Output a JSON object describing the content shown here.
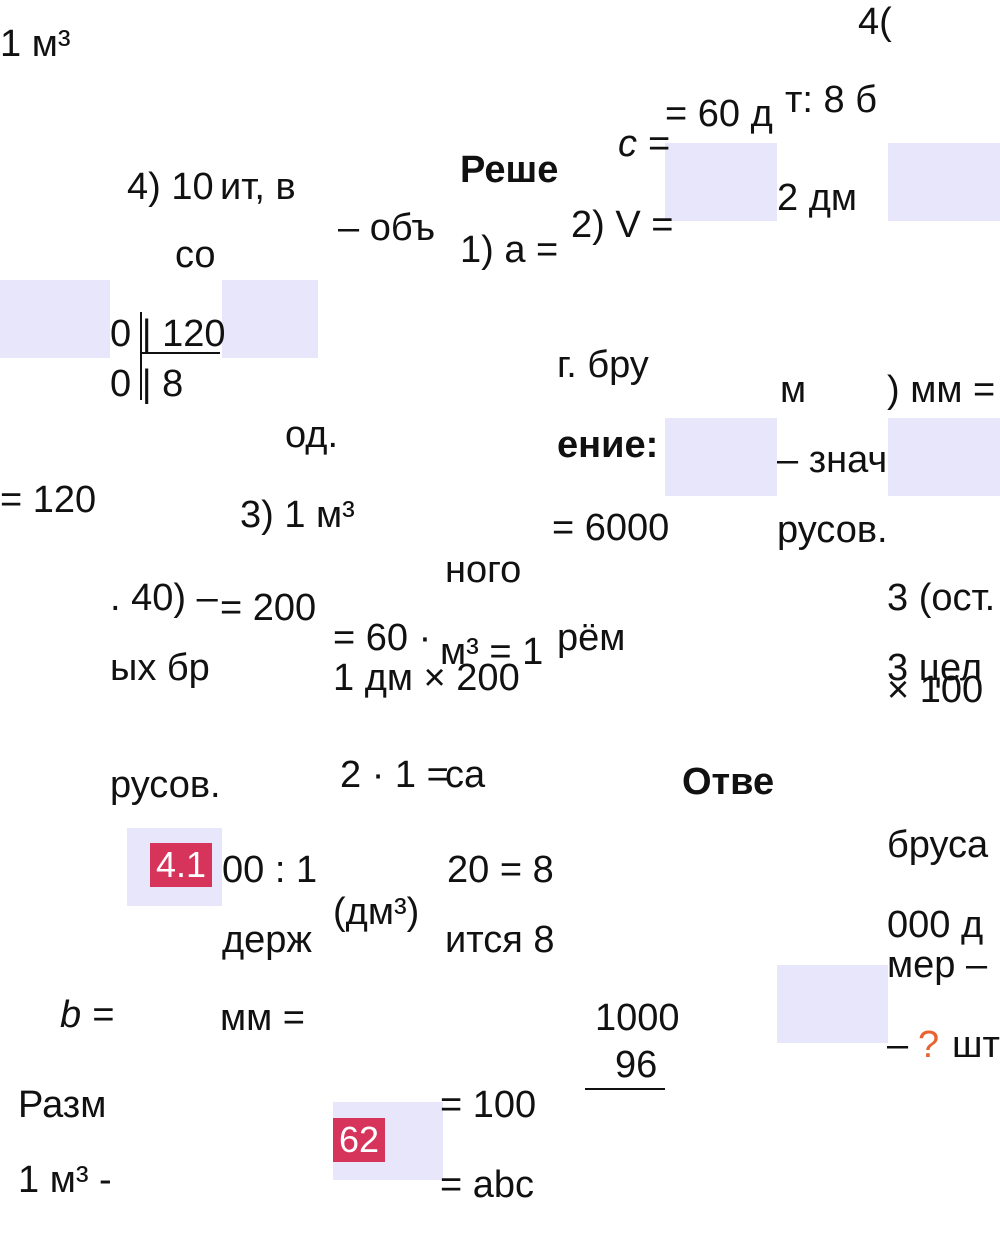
{
  "fragments": [
    "1 м³",
    "4(",
    "= 60 д",
    "т: 8 б",
    "с =",
    "Реше",
    "4) 10",
    "ит, в",
    "2 дм",
    "– объ",
    "2) V =",
    "1) a =",
    "со",
    "0 | 120",
    "0 | 8",
    "г. бру",
    "м",
    ") мм =",
    "од.",
    "ение:",
    "– знач",
    "= 120",
    "3) 1 м³",
    "= 6000",
    "русов.",
    "ного",
    ". 40) –",
    "= 200",
    "3 (ост.",
    "= 60 ·",
    "м³ = 1",
    "рём",
    "ых бр",
    "3 цел",
    "1 дм × 200",
    "× 100",
    "русов.",
    "2 · 1 =",
    "са",
    "Отве",
    "бруса",
    "4.1",
    "00 : 1",
    "20 = 8",
    "(дм³)",
    "000 д",
    "держ",
    "ится 8",
    "мер –",
    "b =",
    "мм =",
    "1000",
    "96",
    "–",
    "?",
    "шт",
    "Разм",
    "62",
    "= 100",
    "1 м³ -",
    "= abc"
  ]
}
